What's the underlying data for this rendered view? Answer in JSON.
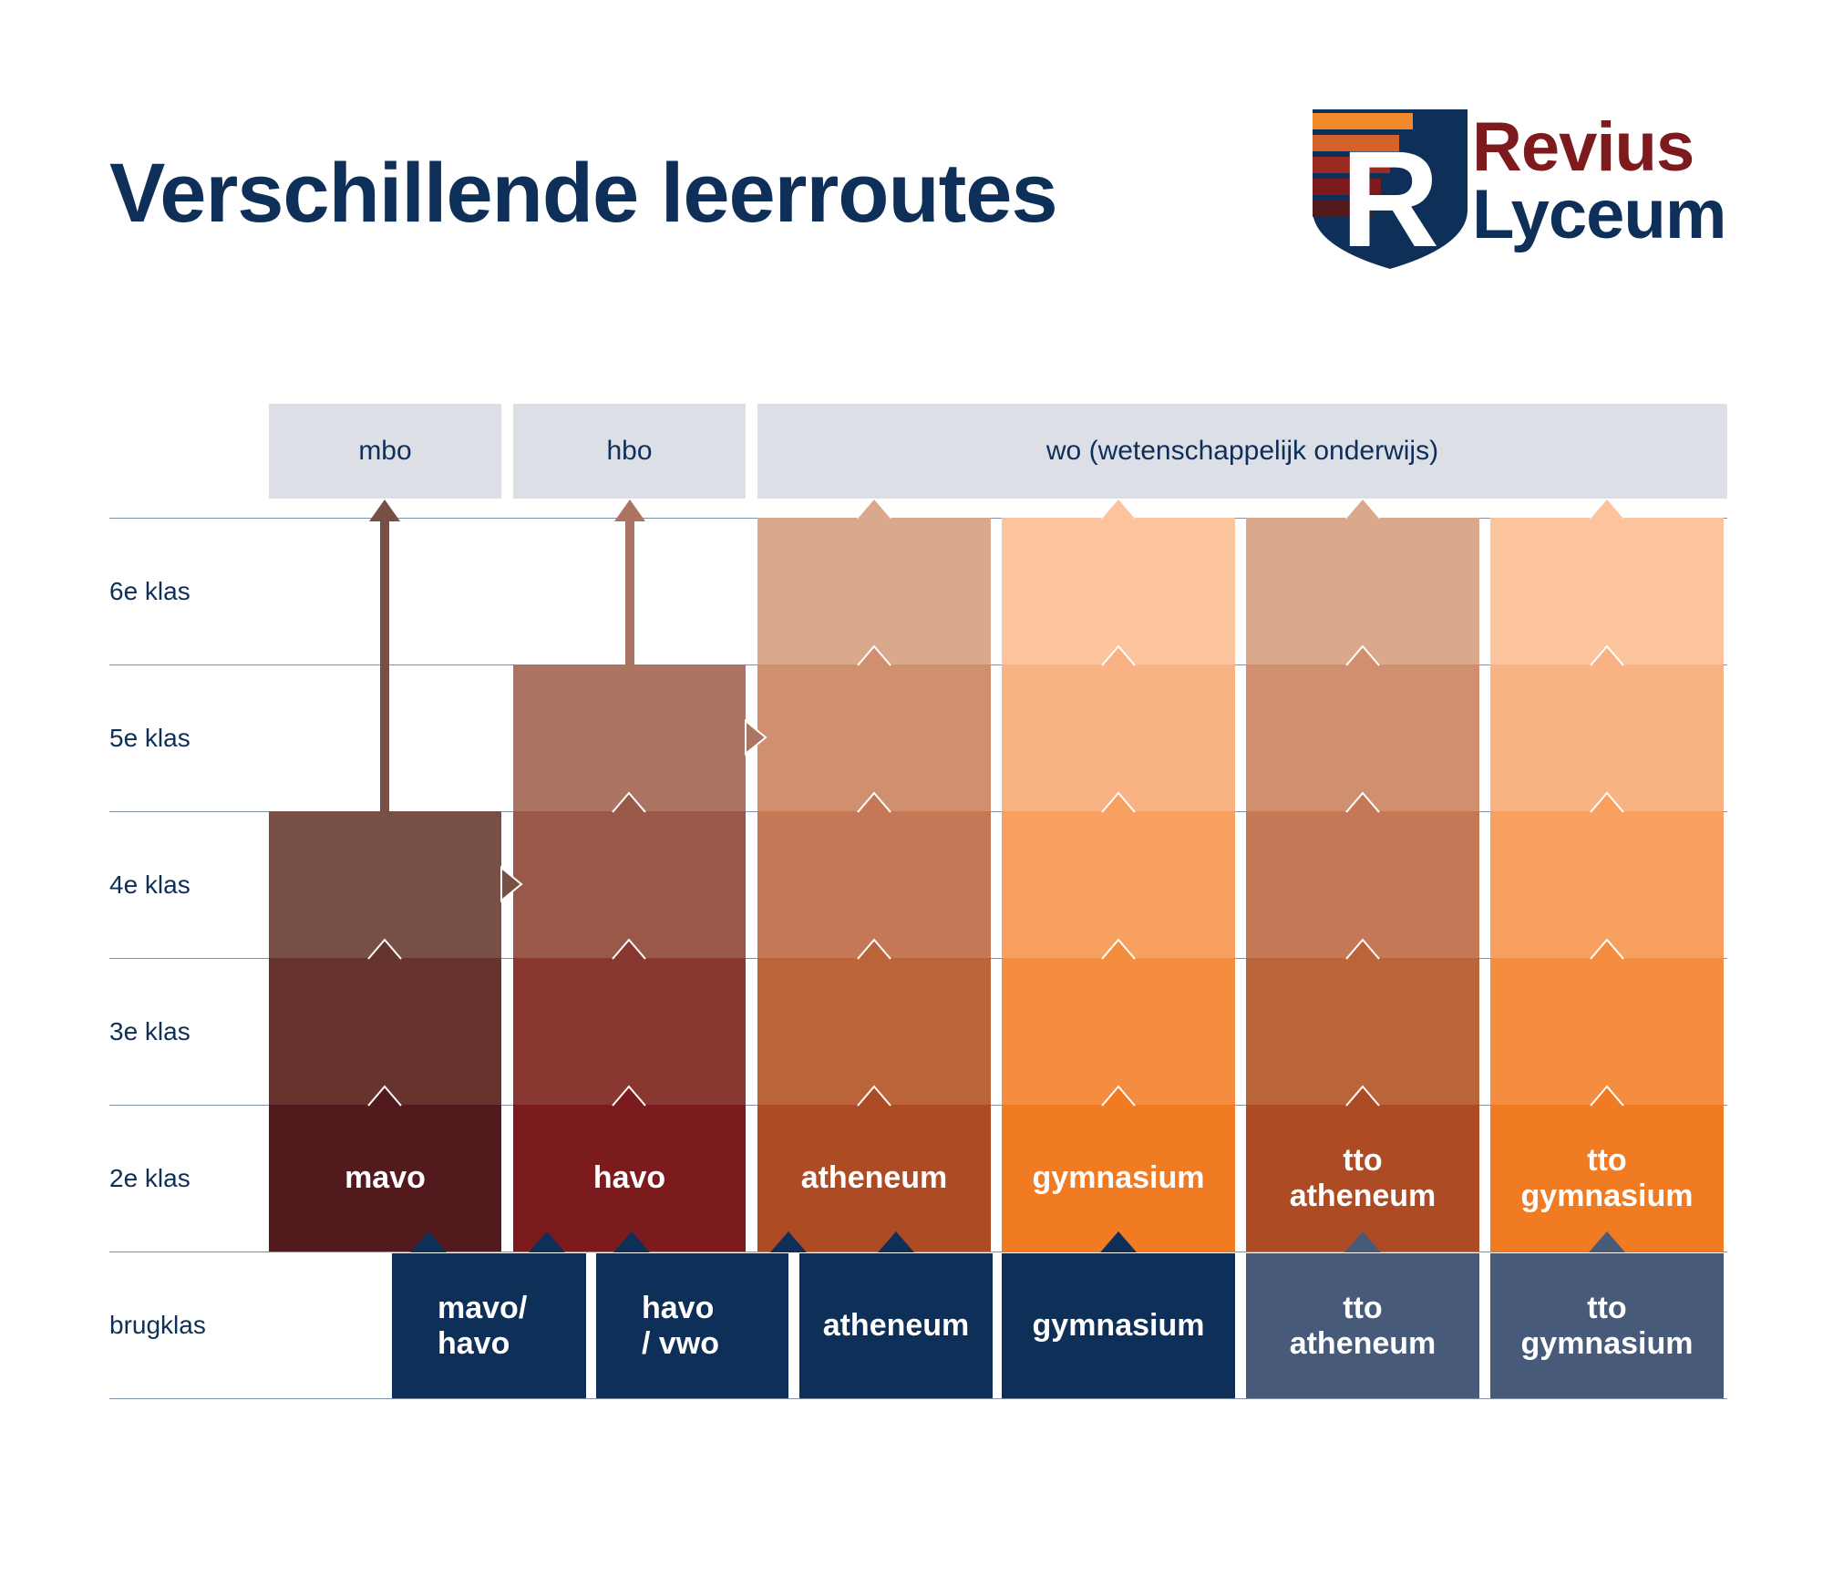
{
  "title": "Verschillende leerroutes",
  "logo": {
    "line1": "Revius",
    "line2": "Lyceum",
    "colors": {
      "navy": "#0e2f58",
      "red": "#7d1a1e",
      "orange": "#f28a2b"
    }
  },
  "destinations": [
    "mbo",
    "hbo",
    "wo (wetenschappelijk onderwijs)"
  ],
  "rows": [
    "6e klas",
    "5e klas",
    "4e klas",
    "3e klas",
    "2e klas",
    "brugklas"
  ],
  "routes": [
    {
      "label": "mavo",
      "klassen": [
        "2e klas",
        "3e klas",
        "4e klas"
      ],
      "destination": "mbo",
      "colors": [
        "#521a1c",
        "#66332d",
        "#784f44"
      ]
    },
    {
      "label": "havo",
      "klassen": [
        "2e klas",
        "3e klas",
        "4e klas",
        "5e klas"
      ],
      "destination": "hbo",
      "colors": [
        "#7b1b1e",
        "#883830",
        "#9a5848",
        "#ab7463"
      ]
    },
    {
      "label": "atheneum",
      "klassen": [
        "2e klas",
        "3e klas",
        "4e klas",
        "5e klas",
        "6e klas"
      ],
      "destination": "wo (wetenschappelijk onderwijs)",
      "colors": [
        "#ad4b24",
        "#bb6339",
        "#c47856",
        "#d09070",
        "#daa98b"
      ]
    },
    {
      "label": "gymnasium",
      "klassen": [
        "2e klas",
        "3e klas",
        "4e klas",
        "5e klas",
        "6e klas"
      ],
      "destination": "wo (wetenschappelijk onderwijs)",
      "colors": [
        "#f17b23",
        "#f48d40",
        "#f7a060",
        "#f9b283",
        "#fcc49c"
      ]
    },
    {
      "label": "tto\natheneum",
      "klassen": [
        "2e klas",
        "3e klas",
        "4e klas",
        "5e klas",
        "6e klas"
      ],
      "destination": "wo (wetenschappelijk onderwijs)",
      "colors": [
        "#ad4b24",
        "#bb6339",
        "#c47856",
        "#d09070",
        "#daa98b"
      ]
    },
    {
      "label": "tto\ngymnasium",
      "klassen": [
        "2e klas",
        "3e klas",
        "4e klas",
        "5e klas",
        "6e klas"
      ],
      "destination": "wo (wetenschappelijk onderwijs)",
      "colors": [
        "#f17b23",
        "#f48d40",
        "#f7a060",
        "#f9b283",
        "#fcc49c"
      ]
    }
  ],
  "brugklassen": [
    {
      "label": "mavo/\nhavo",
      "color": "#0e2f58"
    },
    {
      "label": "havo\n/ vwo",
      "color": "#0e2f58"
    },
    {
      "label": "atheneum",
      "color": "#0e2f58"
    },
    {
      "label": "gymnasium",
      "color": "#0e2f58"
    },
    {
      "label": "tto\natheneum",
      "color": "#485a7a"
    },
    {
      "label": "tto\ngymnasium",
      "color": "#485a7a"
    }
  ],
  "arrow_colors": {
    "mbo": "#784f44",
    "hbo": "#ab7463"
  }
}
